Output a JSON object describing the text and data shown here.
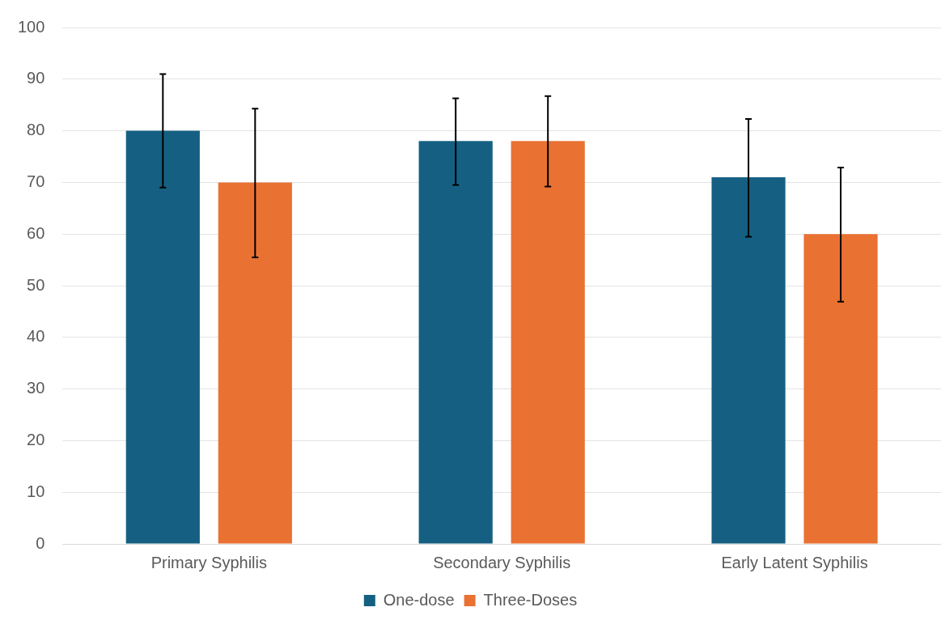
{
  "chart_data": {
    "type": "bar",
    "categories": [
      "Primary Syphilis",
      "Secondary Syphilis",
      "Early Latent Syphilis"
    ],
    "series": [
      {
        "name": "One-dose",
        "color": "#156082",
        "values": [
          80,
          78,
          71
        ],
        "errors": [
          [
            69,
            91
          ],
          [
            69.5,
            86.3
          ],
          [
            59.5,
            82.3
          ]
        ]
      },
      {
        "name": "Three-Doses",
        "color": "#e97132",
        "values": [
          70,
          78,
          60
        ],
        "errors": [
          [
            55.5,
            84.3
          ],
          [
            69.2,
            86.7
          ],
          [
            46.9,
            72.9
          ]
        ]
      }
    ],
    "ylim": [
      0,
      100
    ],
    "yticks": [
      0,
      10,
      20,
      30,
      40,
      50,
      60,
      70,
      80,
      90,
      100
    ],
    "grid": "y",
    "legend": "bottom"
  }
}
